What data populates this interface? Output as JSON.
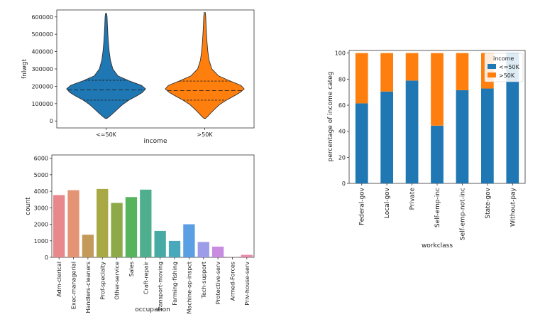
{
  "chart_data": [
    {
      "type": "violin",
      "xlabel": "income",
      "ylabel": "fnlwgt",
      "categories": [
        "<=50K",
        ">50K"
      ],
      "colors": [
        "#1f77b4",
        "#ff7f0e"
      ],
      "ylim": [
        -40000,
        640000
      ],
      "yticks": [
        0,
        100000,
        200000,
        300000,
        400000,
        500000,
        600000
      ],
      "ytick_labels": [
        "0",
        "100000",
        "200000",
        "300000",
        "400000",
        "500000",
        "600000"
      ],
      "violins": [
        {
          "name": "<=50K",
          "q1": 120000,
          "median": 180000,
          "q3": 235000,
          "min": 15000,
          "max": 620000,
          "profile": [
            [
              15000,
              0.02
            ],
            [
              25000,
              0.08
            ],
            [
              45000,
              0.18
            ],
            [
              70000,
              0.3
            ],
            [
              95000,
              0.42
            ],
            [
              120000,
              0.58
            ],
            [
              145000,
              0.78
            ],
            [
              165000,
              0.92
            ],
            [
              185000,
              1.0
            ],
            [
              205000,
              0.9
            ],
            [
              230000,
              0.6
            ],
            [
              260000,
              0.3
            ],
            [
              300000,
              0.17
            ],
            [
              350000,
              0.11
            ],
            [
              400000,
              0.08
            ],
            [
              450000,
              0.06
            ],
            [
              500000,
              0.045
            ],
            [
              550000,
              0.035
            ],
            [
              600000,
              0.025
            ],
            [
              620000,
              0.015
            ]
          ]
        },
        {
          "name": ">50K",
          "q1": 120000,
          "median": 175000,
          "q3": 230000,
          "min": 15000,
          "max": 625000,
          "profile": [
            [
              15000,
              0.02
            ],
            [
              25000,
              0.07
            ],
            [
              45000,
              0.15
            ],
            [
              70000,
              0.26
            ],
            [
              95000,
              0.38
            ],
            [
              120000,
              0.55
            ],
            [
              145000,
              0.75
            ],
            [
              165000,
              0.9
            ],
            [
              185000,
              1.0
            ],
            [
              205000,
              0.92
            ],
            [
              230000,
              0.65
            ],
            [
              260000,
              0.35
            ],
            [
              300000,
              0.18
            ],
            [
              350000,
              0.11
            ],
            [
              400000,
              0.08
            ],
            [
              450000,
              0.06
            ],
            [
              500000,
              0.045
            ],
            [
              550000,
              0.035
            ],
            [
              600000,
              0.025
            ],
            [
              625000,
              0.015
            ]
          ]
        }
      ]
    },
    {
      "type": "bar",
      "xlabel": "occupation",
      "ylabel": "count",
      "categories": [
        "Adm-clerical",
        "Exec-managerial",
        "Handlers-cleaners",
        "Prof-specialty",
        "Other-service",
        "Sales",
        "Craft-repair",
        "Transport-moving",
        "Farming-fishing",
        "Machine-op-inspct",
        "Tech-support",
        "Protective-serv",
        "Armed-Forces",
        "Priv-house-serv"
      ],
      "values": [
        3770,
        4066,
        1370,
        4140,
        3295,
        3650,
        4099,
        1597,
        994,
        2002,
        928,
        649,
        9,
        149
      ],
      "colors": [
        "#e8888c",
        "#e49474",
        "#c49a5a",
        "#a8a844",
        "#8eaa48",
        "#56b45e",
        "#4fae8e",
        "#48aaa4",
        "#4aa8bc",
        "#5a9ee4",
        "#9c9ce8",
        "#c88ce0",
        "#e48ad0",
        "#e88aa8"
      ],
      "ylim": [
        0,
        6200
      ],
      "yticks": [
        0,
        1000,
        2000,
        3000,
        4000,
        5000,
        6000
      ],
      "ytick_labels": [
        "0",
        "1000",
        "2000",
        "3000",
        "4000",
        "5000",
        "6000"
      ]
    },
    {
      "type": "stacked_bar",
      "xlabel": "workclass",
      "ylabel": "percentage of income categ",
      "categories": [
        "Federal-gov",
        "Local-gov",
        "Private",
        "Self-emp-inc",
        "Self-emp-not-inc",
        "State-gov",
        "Without-pay"
      ],
      "series": [
        {
          "name": "<=50K",
          "color": "#1f77b4",
          "values": [
            61.4,
            70.5,
            78.9,
            44.3,
            71.5,
            72.8,
            100
          ]
        },
        {
          "name": ">50K",
          "color": "#ff7f0e",
          "values": [
            38.6,
            29.5,
            21.1,
            55.7,
            28.5,
            27.2,
            0
          ]
        }
      ],
      "ylim": [
        0,
        102
      ],
      "yticks": [
        0,
        20,
        40,
        60,
        80,
        100
      ],
      "ytick_labels": [
        "0",
        "20",
        "40",
        "60",
        "80",
        "100"
      ],
      "legend_title": "income",
      "legend_placement": "top-right"
    }
  ]
}
